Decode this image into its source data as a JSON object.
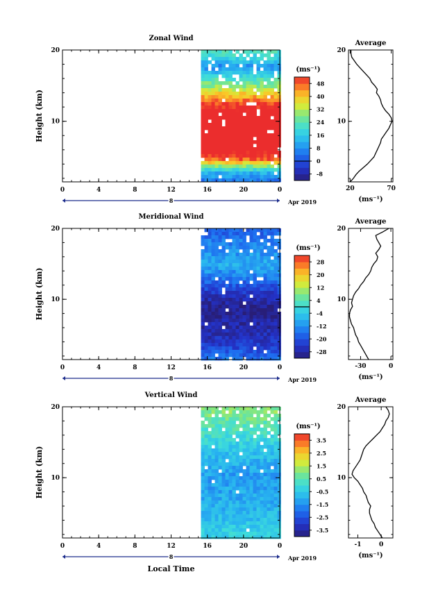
{
  "figure": {
    "xlabel": "Local Time",
    "date_label": "Apr 2019",
    "day_label": "8"
  },
  "chart_data": [
    {
      "type": "heatmap",
      "title": "Zonal Wind",
      "ylabel": "Height (km)",
      "xlabel": "",
      "x_ticks": [
        "0",
        "4",
        "8",
        "12",
        "16",
        "20",
        "0"
      ],
      "xlim": [
        0,
        24
      ],
      "ylim": [
        1.5,
        20
      ],
      "y_ticks": [
        "20",
        "10"
      ],
      "y_tick_values": [
        20,
        10
      ],
      "data_x_range": [
        15.3,
        23.9
      ],
      "colorbar": {
        "unit": "(ms⁻¹)",
        "tick_labels": [
          "48",
          "40",
          "32",
          "24",
          "16",
          "8",
          "0",
          "-8"
        ],
        "tick_values": [
          48,
          40,
          32,
          24,
          16,
          8,
          0,
          -8
        ],
        "range": [
          -12,
          52
        ],
        "zero_line": 0
      },
      "profile_by_height": [
        {
          "h": 2,
          "v": 6
        },
        {
          "h": 3,
          "v": 12
        },
        {
          "h": 4,
          "v": 30
        },
        {
          "h": 5,
          "v": 50
        },
        {
          "h": 6,
          "v": 55
        },
        {
          "h": 7,
          "v": 58
        },
        {
          "h": 8,
          "v": 62
        },
        {
          "h": 9,
          "v": 66
        },
        {
          "h": 10,
          "v": 62
        },
        {
          "h": 11,
          "v": 58
        },
        {
          "h": 12,
          "v": 54
        },
        {
          "h": 13,
          "v": 48
        },
        {
          "h": 14,
          "v": 40
        },
        {
          "h": 15,
          "v": 30
        },
        {
          "h": 16,
          "v": 24
        },
        {
          "h": 17,
          "v": 14
        },
        {
          "h": 18,
          "v": 8
        },
        {
          "h": 19,
          "v": 18
        },
        {
          "h": 20,
          "v": 22
        }
      ],
      "average": {
        "title": "Average",
        "x_ticks": [
          "20",
          "70"
        ],
        "x_tick_values": [
          20,
          70
        ],
        "xlim": [
          18,
          72
        ],
        "xlabel": "(ms⁻¹)",
        "heights": [
          1.5,
          2,
          2.5,
          3,
          3.5,
          4,
          4.5,
          5,
          5.5,
          6,
          6.5,
          7,
          7.5,
          8,
          8.5,
          9,
          9.5,
          10,
          10.5,
          11,
          11.5,
          12,
          12.5,
          13,
          13.5,
          14,
          14.5,
          15,
          15.5,
          16,
          16.5,
          17,
          17.5,
          18,
          18.5,
          19,
          19.5,
          20
        ],
        "values": [
          20,
          24,
          27,
          31,
          36,
          41,
          45,
          49,
          51,
          53,
          55,
          57,
          58,
          61,
          64,
          67,
          69,
          71,
          70,
          67,
          63,
          60,
          58,
          57,
          55,
          52,
          53,
          50,
          46,
          44,
          40,
          36,
          32,
          28,
          25,
          22,
          21,
          21
        ]
      }
    },
    {
      "type": "heatmap",
      "title": "Meridional Wind",
      "ylabel": "Height (km)",
      "xlabel": "",
      "x_ticks": [
        "0",
        "4",
        "8",
        "12",
        "16",
        "20",
        "0"
      ],
      "xlim": [
        0,
        24
      ],
      "ylim": [
        1.5,
        20
      ],
      "y_ticks": [
        "20",
        "10"
      ],
      "y_tick_values": [
        20,
        10
      ],
      "data_x_range": [
        15.3,
        23.9
      ],
      "colorbar": {
        "unit": "(ms⁻¹)",
        "tick_labels": [
          "28",
          "20",
          "12",
          "4",
          "-4",
          "-12",
          "-20",
          "-28"
        ],
        "tick_values": [
          28,
          20,
          12,
          4,
          -4,
          -12,
          -20,
          -28
        ],
        "range": [
          -32,
          32
        ],
        "zero_line": 0
      },
      "profile_by_height": [
        {
          "h": 2,
          "v": -16
        },
        {
          "h": 3,
          "v": -20
        },
        {
          "h": 4,
          "v": -24
        },
        {
          "h": 5,
          "v": -26
        },
        {
          "h": 6,
          "v": -27
        },
        {
          "h": 7,
          "v": -28
        },
        {
          "h": 8,
          "v": -30
        },
        {
          "h": 9,
          "v": -30
        },
        {
          "h": 10,
          "v": -28
        },
        {
          "h": 11,
          "v": -24
        },
        {
          "h": 12,
          "v": -20
        },
        {
          "h": 13,
          "v": -16
        },
        {
          "h": 14,
          "v": -12
        },
        {
          "h": 15,
          "v": -8
        },
        {
          "h": 16,
          "v": -10
        },
        {
          "h": 17,
          "v": -12
        },
        {
          "h": 18,
          "v": -14
        },
        {
          "h": 19,
          "v": -16
        },
        {
          "h": 20,
          "v": -18
        }
      ],
      "average": {
        "title": "Average",
        "x_ticks": [
          "-30",
          "0"
        ],
        "x_tick_values": [
          -30,
          0
        ],
        "xlim": [
          -42,
          2
        ],
        "xlabel": "(ms⁻¹)",
        "heights": [
          1.5,
          2,
          2.5,
          3,
          3.5,
          4,
          4.5,
          5,
          5.5,
          6,
          6.5,
          7,
          7.5,
          8,
          8.5,
          9,
          9.5,
          10,
          10.5,
          11,
          11.5,
          12,
          12.5,
          13,
          13.5,
          14,
          14.5,
          15,
          15.5,
          16,
          16.5,
          17,
          17.5,
          18,
          18.5,
          19,
          19.5,
          20
        ],
        "values": [
          -22,
          -24,
          -26,
          -28,
          -30,
          -32,
          -33,
          -35,
          -36,
          -37,
          -39,
          -40,
          -41,
          -41,
          -40,
          -38,
          -39,
          -38,
          -37,
          -35,
          -32,
          -30,
          -27,
          -25,
          -22,
          -20,
          -19,
          -17,
          -14,
          -13,
          -15,
          -12,
          -10,
          -12,
          -14,
          -15,
          -8,
          -2
        ]
      }
    },
    {
      "type": "heatmap",
      "title": "Vertical Wind",
      "ylabel": "Height (km)",
      "xlabel": "Local Time",
      "x_ticks": [
        "0",
        "4",
        "8",
        "12",
        "16",
        "20",
        "0"
      ],
      "xlim": [
        0,
        24
      ],
      "ylim": [
        1.5,
        20
      ],
      "y_ticks": [
        "20",
        "10"
      ],
      "y_tick_values": [
        20,
        10
      ],
      "data_x_range": [
        15.3,
        23.9
      ],
      "colorbar": {
        "unit": "(ms⁻¹)",
        "tick_labels": [
          "3.5",
          "2.5",
          "1.5",
          "0.5",
          "-0.5",
          "-1.5",
          "-2.5",
          "-3.5"
        ],
        "tick_values": [
          3.5,
          2.5,
          1.5,
          0.5,
          -0.5,
          -1.5,
          -2.5,
          -3.5
        ],
        "range": [
          -4,
          4
        ],
        "zero_line": null
      },
      "profile_by_height": [
        {
          "h": 2,
          "v": -0.3
        },
        {
          "h": 3,
          "v": -0.4
        },
        {
          "h": 4,
          "v": -0.6
        },
        {
          "h": 5,
          "v": -0.8
        },
        {
          "h": 6,
          "v": -0.9
        },
        {
          "h": 7,
          "v": -1.0
        },
        {
          "h": 8,
          "v": -1.1
        },
        {
          "h": 9,
          "v": -1.2
        },
        {
          "h": 10,
          "v": -1.3
        },
        {
          "h": 11,
          "v": -1.2
        },
        {
          "h": 12,
          "v": -1.0
        },
        {
          "h": 13,
          "v": -0.8
        },
        {
          "h": 14,
          "v": -0.6
        },
        {
          "h": 15,
          "v": -0.3
        },
        {
          "h": 16,
          "v": 0.0
        },
        {
          "h": 17,
          "v": 0.3
        },
        {
          "h": 18,
          "v": 0.6
        },
        {
          "h": 19,
          "v": 0.9
        },
        {
          "h": 20,
          "v": 1.1
        }
      ],
      "average": {
        "title": "Average",
        "x_ticks": [
          "-1",
          "0"
        ],
        "x_tick_values": [
          -1,
          0
        ],
        "xlim": [
          -1.4,
          0.5
        ],
        "xlabel": "(ms⁻¹)",
        "heights": [
          1.5,
          2,
          2.5,
          3,
          3.5,
          4,
          4.5,
          5,
          5.5,
          6,
          6.5,
          7,
          7.5,
          8,
          8.5,
          9,
          9.5,
          10,
          10.5,
          11,
          11.5,
          12,
          12.5,
          13,
          13.5,
          14,
          14.5,
          15,
          15.5,
          16,
          16.5,
          17,
          17.5,
          18,
          18.5,
          19,
          19.5,
          20
        ],
        "values": [
          0.05,
          -0.05,
          -0.15,
          -0.25,
          -0.3,
          -0.4,
          -0.45,
          -0.5,
          -0.5,
          -0.45,
          -0.55,
          -0.6,
          -0.65,
          -0.75,
          -0.8,
          -0.9,
          -1.0,
          -1.15,
          -1.25,
          -1.2,
          -1.1,
          -1.0,
          -0.9,
          -0.85,
          -0.8,
          -0.75,
          -0.65,
          -0.5,
          -0.35,
          -0.2,
          -0.05,
          0.05,
          0.15,
          0.2,
          0.3,
          0.35,
          0.3,
          0.2
        ]
      }
    }
  ]
}
